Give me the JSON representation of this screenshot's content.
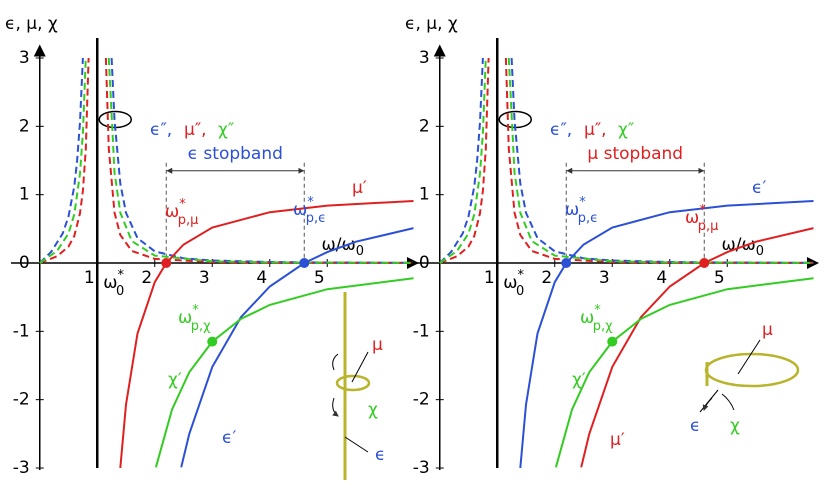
{
  "chart_data": [
    {
      "type": "line",
      "axis_label": "ϵ, μ, χ",
      "x_label": {
        "text": "ω/ω",
        "sub": "0"
      },
      "pole_label": {
        "text": "ω",
        "sub": "0",
        "sup": "*"
      },
      "xlim": [
        -0.5,
        6.5
      ],
      "ylim": [
        -3,
        3
      ],
      "xticks": [
        1,
        2,
        3,
        4,
        5
      ],
      "yticks": [
        -3,
        -2,
        -1,
        0,
        1,
        2,
        3
      ],
      "pole": 1,
      "series": [
        {
          "name": "ϵ″,",
          "color": "#2b50d6",
          "style": "dashed",
          "x": [
            0,
            0.2,
            0.4,
            0.5,
            0.6,
            0.65,
            0.7,
            0.75,
            null,
            1.25,
            1.3,
            1.4,
            1.5,
            1.7,
            2,
            2.5,
            3,
            4,
            5,
            6.5
          ],
          "values": [
            0,
            0.166,
            0.434,
            0.681,
            1.122,
            1.493,
            2.061,
            3,
            null,
            3,
            2.092,
            1.164,
            0.735,
            0.365,
            0.17,
            0.069,
            0.036,
            0.014,
            0.0066,
            0.0029
          ]
        },
        {
          "name": "μ″,",
          "color": "#e02020",
          "style": "dashed",
          "x": [
            0,
            0.3,
            0.5,
            0.6,
            0.7,
            0.75,
            0.8,
            0.85,
            null,
            1.15,
            1.2,
            1.3,
            1.4,
            1.6,
            2,
            3,
            4,
            6.5
          ],
          "values": [
            0,
            0.098,
            0.24,
            0.396,
            0.727,
            1.058,
            1.667,
            3,
            null,
            3,
            1.674,
            0.737,
            0.41,
            0.177,
            0.06,
            0.013,
            0.005,
            0.001
          ]
        },
        {
          "name": "χ″",
          "color": "#33cc22",
          "style": "dashed",
          "x": [
            0,
            0.3,
            0.5,
            0.6,
            0.7,
            0.75,
            0.8,
            null,
            1.2,
            1.3,
            1.4,
            1.6,
            2,
            3,
            4,
            6.5
          ],
          "values": [
            0,
            0.176,
            0.432,
            0.712,
            1.308,
            1.904,
            3,
            null,
            3,
            1.327,
            0.738,
            0.32,
            0.108,
            0.023,
            0.0086,
            0.0019
          ]
        },
        {
          "name": "μ′",
          "color": "#e02020",
          "style": "solid",
          "x": [
            1.4,
            1.5,
            1.7,
            2,
            2.2,
            2.5,
            3,
            4,
            5,
            6.5
          ],
          "values": [
            -3,
            -2.072,
            -1.032,
            -0.28,
            0,
            0.269,
            0.52,
            0.744,
            0.84,
            0.907
          ]
        },
        {
          "name": "ϵ′",
          "color": "#2b50d6",
          "style": "solid",
          "x": [
            2.46,
            2.6,
            3,
            3.5,
            4,
            4.6,
            5,
            5.5,
            6.5
          ],
          "values": [
            -2.99,
            -2.5,
            -1.52,
            -0.792,
            -0.344,
            0,
            0.16,
            0.311,
            0.511
          ]
        },
        {
          "name": "χ′",
          "color": "#33cc22",
          "style": "solid",
          "x": [
            2.02,
            2.3,
            2.6,
            3,
            3.5,
            4,
            5,
            6.5
          ],
          "values": [
            -2.99,
            -2.145,
            -1.597,
            -1.15,
            -0.818,
            -0.613,
            -0.383,
            -0.223
          ]
        }
      ],
      "points": [
        {
          "label": {
            "text": "ω",
            "sup": "*",
            "sub": "p,μ"
          },
          "x": 2.2,
          "y": 0,
          "color": "#e02020"
        },
        {
          "label": {
            "text": "ω",
            "sup": "*",
            "sub": "p,ϵ"
          },
          "x": 4.6,
          "y": 0,
          "color": "#2b50d6"
        },
        {
          "label": {
            "text": "ω",
            "sup": "*",
            "sub": "p,χ"
          },
          "x": 3,
          "y": -1.15,
          "color": "#33cc22"
        }
      ],
      "stopband": {
        "label": "ϵ stopband",
        "color": "#2b50d6",
        "from": 2.2,
        "to": 4.6
      },
      "inset": [
        {
          "text": "μ",
          "color": "#e02020"
        },
        {
          "text": "χ",
          "color": "#33cc22"
        },
        {
          "text": "ϵ",
          "color": "#2b50d6"
        }
      ]
    },
    {
      "type": "line",
      "axis_label": "ϵ, μ, χ",
      "x_label": {
        "text": "ω/ω",
        "sub": "0"
      },
      "pole_label": {
        "text": "ω",
        "sub": "0",
        "sup": "*"
      },
      "xlim": [
        -0.5,
        6.5
      ],
      "ylim": [
        -3,
        3
      ],
      "xticks": [
        1,
        2,
        3,
        4,
        5
      ],
      "yticks": [
        -3,
        -2,
        -1,
        0,
        1,
        2,
        3
      ],
      "pole": 1,
      "series": [
        {
          "name": "ϵ″,",
          "color": "#2b50d6",
          "style": "dashed",
          "x": [
            0,
            0.2,
            0.4,
            0.5,
            0.6,
            0.65,
            0.7,
            0.75,
            null,
            1.25,
            1.3,
            1.4,
            1.5,
            1.7,
            2,
            2.5,
            3,
            4,
            5,
            6.5
          ],
          "values": [
            0,
            0.166,
            0.434,
            0.681,
            1.122,
            1.493,
            2.061,
            3,
            null,
            3,
            2.092,
            1.164,
            0.735,
            0.365,
            0.17,
            0.069,
            0.036,
            0.014,
            0.0066,
            0.0029
          ]
        },
        {
          "name": "μ″,",
          "color": "#e02020",
          "style": "dashed",
          "x": [
            0,
            0.3,
            0.5,
            0.6,
            0.7,
            0.75,
            0.8,
            0.85,
            null,
            1.15,
            1.2,
            1.3,
            1.4,
            1.6,
            2,
            3,
            4,
            6.5
          ],
          "values": [
            0,
            0.098,
            0.24,
            0.396,
            0.727,
            1.058,
            1.667,
            3,
            null,
            3,
            1.674,
            0.737,
            0.41,
            0.177,
            0.06,
            0.013,
            0.005,
            0.001
          ]
        },
        {
          "name": "χ″",
          "color": "#33cc22",
          "style": "dashed",
          "x": [
            0,
            0.3,
            0.5,
            0.6,
            0.7,
            0.75,
            0.8,
            null,
            1.2,
            1.3,
            1.4,
            1.6,
            2,
            3,
            4,
            6.5
          ],
          "values": [
            0,
            0.176,
            0.432,
            0.712,
            1.308,
            1.904,
            3,
            null,
            3,
            1.327,
            0.738,
            0.32,
            0.108,
            0.023,
            0.0086,
            0.0019
          ]
        },
        {
          "name": "μ′",
          "color": "#e02020",
          "style": "solid",
          "x": [
            2.46,
            2.6,
            3,
            3.5,
            4,
            4.6,
            5,
            5.5,
            6.5
          ],
          "values": [
            -2.99,
            -2.5,
            -1.52,
            -0.792,
            -0.344,
            0,
            0.16,
            0.311,
            0.511
          ]
        },
        {
          "name": "ϵ′",
          "color": "#2b50d6",
          "style": "solid",
          "x": [
            1.4,
            1.5,
            1.7,
            2,
            2.2,
            2.5,
            3,
            4,
            5,
            6.5
          ],
          "values": [
            -3,
            -2.072,
            -1.032,
            -0.28,
            0,
            0.269,
            0.52,
            0.744,
            0.84,
            0.907
          ]
        },
        {
          "name": "χ′",
          "color": "#33cc22",
          "style": "solid",
          "x": [
            2.02,
            2.3,
            2.6,
            3,
            3.5,
            4,
            5,
            6.5
          ],
          "values": [
            -2.99,
            -2.145,
            -1.597,
            -1.15,
            -0.818,
            -0.613,
            -0.383,
            -0.223
          ]
        }
      ],
      "points": [
        {
          "label": {
            "text": "ω",
            "sup": "*",
            "sub": "p,ϵ"
          },
          "x": 2.2,
          "y": 0,
          "color": "#2b50d6"
        },
        {
          "label": {
            "text": "ω",
            "sup": "*",
            "sub": "p,μ"
          },
          "x": 4.6,
          "y": 0,
          "color": "#e02020"
        },
        {
          "label": {
            "text": "ω",
            "sup": "*",
            "sub": "p,χ"
          },
          "x": 3,
          "y": -1.15,
          "color": "#33cc22"
        }
      ],
      "stopband": {
        "label": "μ stopband",
        "color": "#e02020",
        "from": 2.2,
        "to": 4.6
      },
      "inset": [
        {
          "text": "μ",
          "color": "#e02020"
        },
        {
          "text": "ϵ",
          "color": "#2b50d6"
        },
        {
          "text": "χ",
          "color": "#33cc22"
        }
      ]
    }
  ]
}
